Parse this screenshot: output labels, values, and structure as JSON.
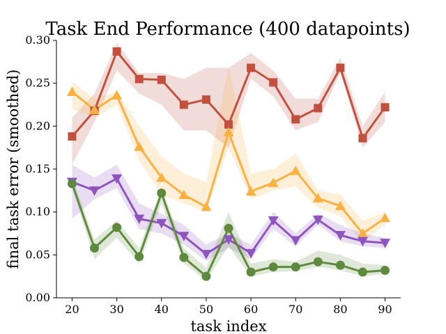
{
  "chart_data": {
    "type": "line",
    "title": "Task End Performance (400 datapoints)",
    "xlabel": "task index",
    "ylabel": "final task error (smoothed)",
    "xlim": [
      16.5,
      93.5
    ],
    "ylim": [
      0,
      0.3
    ],
    "xticks": [
      20,
      30,
      40,
      50,
      60,
      70,
      80,
      90
    ],
    "xtick_labels": [
      "20",
      "30",
      "40",
      "50",
      "60",
      "70",
      "80",
      "90"
    ],
    "yticks": [
      0,
      0.05,
      0.1,
      0.15,
      0.2,
      0.25,
      0.3
    ],
    "ytick_labels": [
      "0.00",
      "0.05",
      "0.10",
      "0.15",
      "0.20",
      "0.25",
      "0.30"
    ],
    "grid": false,
    "x": [
      20,
      25,
      30,
      35,
      40,
      45,
      50,
      55,
      60,
      65,
      70,
      75,
      80,
      85,
      90
    ],
    "series": [
      {
        "name": "red-square",
        "color": "#c0513f",
        "marker": "square",
        "values": [
          0.188,
          0.218,
          0.287,
          0.255,
          0.254,
          0.225,
          0.231,
          0.202,
          0.268,
          0.251,
          0.208,
          0.221,
          0.268,
          0.186,
          0.222
        ],
        "lower": [
          0.155,
          0.205,
          0.265,
          0.238,
          0.225,
          0.195,
          0.195,
          0.175,
          0.255,
          0.235,
          0.195,
          0.205,
          0.262,
          0.175,
          0.205
        ],
        "upper": [
          0.21,
          0.238,
          0.297,
          0.262,
          0.262,
          0.255,
          0.268,
          0.268,
          0.285,
          0.265,
          0.232,
          0.232,
          0.28,
          0.2,
          0.24
        ]
      },
      {
        "name": "orange-triangle-up",
        "color": "#fbb142",
        "marker": "triangle-up",
        "values": [
          0.24,
          0.219,
          0.236,
          0.176,
          0.14,
          0.12,
          0.106,
          0.193,
          0.124,
          0.134,
          0.148,
          0.116,
          0.107,
          0.075,
          0.093
        ],
        "lower": [
          0.22,
          0.21,
          0.225,
          0.16,
          0.12,
          0.11,
          0.1,
          0.175,
          0.115,
          0.125,
          0.13,
          0.105,
          0.095,
          0.065,
          0.085
        ],
        "upper": [
          0.252,
          0.232,
          0.24,
          0.2,
          0.165,
          0.145,
          0.135,
          0.27,
          0.145,
          0.15,
          0.168,
          0.125,
          0.12,
          0.09,
          0.1
        ]
      },
      {
        "name": "purple-triangle-down",
        "color": "#8e55bf",
        "marker": "triangle-down",
        "values": [
          0.135,
          0.125,
          0.139,
          0.092,
          0.087,
          0.072,
          0.051,
          0.068,
          0.052,
          0.09,
          0.067,
          0.091,
          0.073,
          0.066,
          0.064
        ],
        "lower": [
          0.092,
          0.115,
          0.128,
          0.08,
          0.075,
          0.062,
          0.043,
          0.058,
          0.045,
          0.08,
          0.06,
          0.085,
          0.066,
          0.06,
          0.058
        ],
        "upper": [
          0.155,
          0.14,
          0.155,
          0.11,
          0.098,
          0.085,
          0.062,
          0.075,
          0.062,
          0.1,
          0.075,
          0.098,
          0.085,
          0.075,
          0.07
        ]
      },
      {
        "name": "green-circle",
        "color": "#5e8a3e",
        "marker": "circle",
        "values": [
          0.133,
          0.058,
          0.082,
          0.048,
          0.122,
          0.047,
          0.025,
          0.081,
          0.03,
          0.036,
          0.036,
          0.042,
          0.038,
          0.03,
          0.032
        ],
        "lower": [
          0.128,
          0.045,
          0.07,
          0.04,
          0.11,
          0.04,
          0.02,
          0.06,
          0.025,
          0.03,
          0.031,
          0.036,
          0.032,
          0.025,
          0.028
        ],
        "upper": [
          0.14,
          0.068,
          0.09,
          0.058,
          0.128,
          0.058,
          0.035,
          0.1,
          0.04,
          0.045,
          0.042,
          0.055,
          0.05,
          0.04,
          0.038
        ]
      }
    ]
  }
}
